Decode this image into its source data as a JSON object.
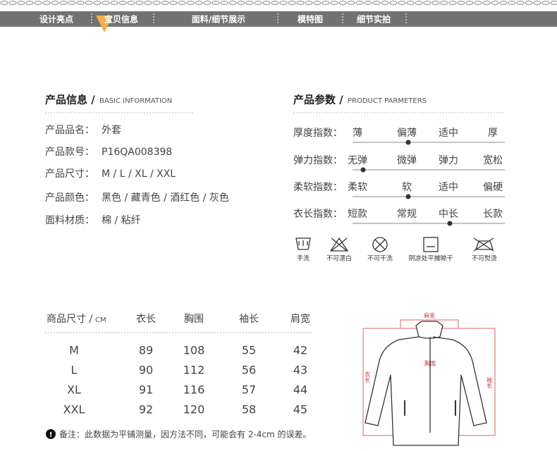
{
  "nav": {
    "tabs": [
      "设计亮点",
      "宝贝信息",
      "面料/细节展示",
      "模特图",
      "细节实拍"
    ]
  },
  "basic_info": {
    "title": "产品信息 /",
    "subtitle": "BASIC INFORMATION",
    "rows": [
      {
        "label": "产品品名：",
        "value": "外套"
      },
      {
        "label": "产品款号：",
        "value": "P16QA008398"
      },
      {
        "label": "产品尺寸：",
        "value": "M / L / XL / XXL"
      },
      {
        "label": "产品颜色：",
        "value": "黑色 / 藏青色 / 酒红色 / 灰色"
      },
      {
        "label": "面料材质：",
        "value": "棉 / 粘纤"
      }
    ]
  },
  "parameters": {
    "title": "产品参数 /",
    "subtitle": "PRODUCT PARMETERS",
    "rows": [
      {
        "label": "厚度指数：",
        "options": [
          "薄",
          "偏薄",
          "适中",
          "厚"
        ],
        "selected": 1
      },
      {
        "label": "弹力指数：",
        "options": [
          "无弹",
          "微弹",
          "弹力",
          "宽松"
        ],
        "selected": 0
      },
      {
        "label": "柔软指数：",
        "options": [
          "柔软",
          "软",
          "适中",
          "偏硬"
        ],
        "selected": 1
      },
      {
        "label": "衣长指数：",
        "options": [
          "短款",
          "常规",
          "中长",
          "长款"
        ],
        "selected": 2
      }
    ]
  },
  "care": [
    "手洗",
    "不可漂白",
    "不可干洗",
    "阴凉处平摊晾干",
    "不可熨烫"
  ],
  "size_table": {
    "title": "商品尺寸 /",
    "unit": "CM",
    "columns": [
      "衣长",
      "胸围",
      "袖长",
      "肩宽"
    ],
    "rows": [
      [
        "M",
        89,
        108,
        55,
        42
      ],
      [
        "L",
        90,
        112,
        56,
        43
      ],
      [
        "XL",
        91,
        116,
        57,
        44
      ],
      [
        "XXL",
        92,
        120,
        58,
        45
      ]
    ]
  },
  "note": "备注：此数据为平铺测量，因方法不同，可能会有 2-4cm 的误差。",
  "diagram": {
    "labels": {
      "shoulder": "肩宽",
      "chest": "胸围",
      "length": "衣长",
      "sleeve": "袖长"
    }
  }
}
